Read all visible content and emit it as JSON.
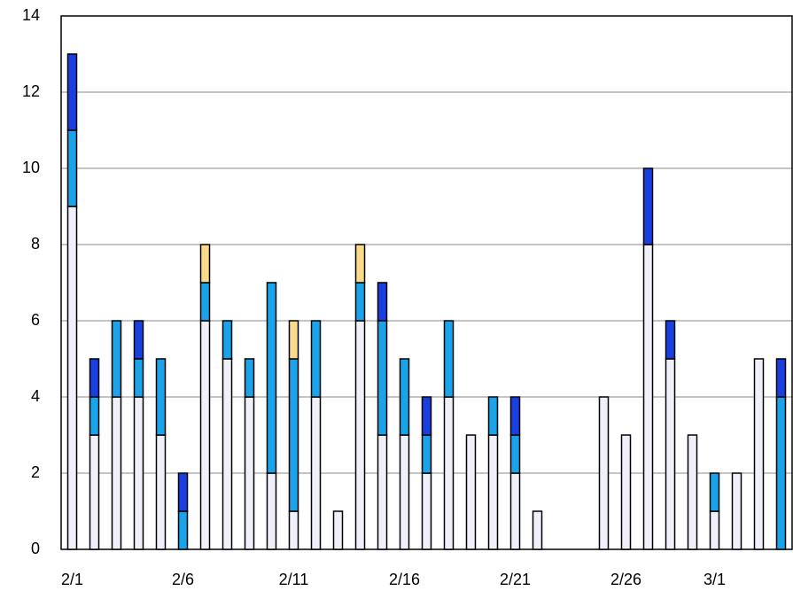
{
  "chart_data": {
    "type": "stacked-bar",
    "categories": [
      "2/1",
      null,
      null,
      null,
      null,
      "2/6",
      null,
      null,
      null,
      null,
      "2/11",
      null,
      null,
      null,
      null,
      "2/16",
      null,
      null,
      null,
      null,
      "2/21",
      null,
      null,
      null,
      null,
      "2/26",
      null,
      null,
      null,
      "3/1",
      null,
      null,
      null
    ],
    "series": [
      {
        "color": "#f0f0fa",
        "values": [
          9,
          3,
          4,
          4,
          3,
          0,
          6,
          5,
          4,
          2,
          1,
          4,
          1,
          6,
          3,
          3,
          2,
          4,
          3,
          3,
          2,
          1,
          0,
          0,
          4,
          3,
          8,
          5,
          3,
          1,
          2,
          5,
          0
        ]
      },
      {
        "color": "#1aa3e8",
        "values": [
          2,
          1,
          2,
          1,
          2,
          1,
          1,
          1,
          1,
          5,
          4,
          2,
          0,
          1,
          3,
          2,
          1,
          2,
          0,
          1,
          1,
          0,
          0,
          0,
          0,
          0,
          0,
          0,
          0,
          1,
          0,
          0,
          4
        ]
      },
      {
        "color": "#1a3fe0",
        "values": [
          2,
          1,
          0,
          1,
          0,
          1,
          0,
          0,
          0,
          0,
          0,
          0,
          0,
          0,
          1,
          0,
          1,
          0,
          0,
          0,
          1,
          0,
          0,
          0,
          0,
          0,
          2,
          1,
          0,
          0,
          0,
          0,
          1
        ]
      },
      {
        "color": "#fadb8c",
        "values": [
          0,
          0,
          0,
          0,
          0,
          0,
          1,
          0,
          0,
          0,
          1,
          0,
          0,
          1,
          0,
          0,
          0,
          0,
          0,
          0,
          0,
          0,
          0,
          0,
          0,
          0,
          0,
          0,
          0,
          0,
          0,
          0,
          0
        ]
      }
    ],
    "ylim": [
      0,
      14
    ],
    "yticks": [
      0,
      2,
      4,
      6,
      8,
      10,
      12,
      14
    ],
    "grid": true
  }
}
